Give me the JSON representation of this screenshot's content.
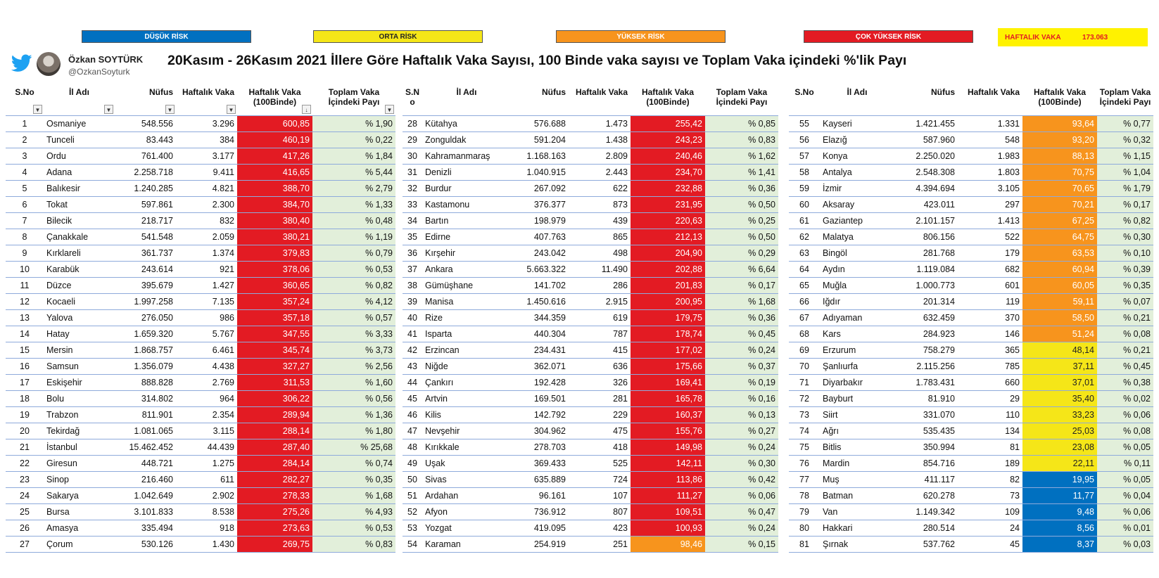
{
  "legend": {
    "low": "DÜŞÜK RİSK",
    "mid": "ORTA RİSK",
    "high": "YÜKSEK RİSK",
    "very_high": "ÇOK YÜKSEK RİSK"
  },
  "weekly_total": {
    "label": "HAFTALIK VAKA",
    "value": "173.063"
  },
  "author": {
    "name": "Özkan SOYTÜRK",
    "handle": "@OzkanSoyturk"
  },
  "title": "20Kasım - 26Kasım 2021  İllere Göre Haftalık Vaka Sayısı, 100 Binde vaka sayısı ve Toplam Vaka içindeki %'lik Payı",
  "colors": {
    "very_high": "#e31b23",
    "high": "#f7941d",
    "mid": "#f5e618",
    "low": "#0070c0",
    "share_bg": "#e2efda"
  },
  "headers": {
    "sno": "S.No",
    "sno_split": "S.N\no",
    "il": "İl Adı",
    "nufus": "Nüfus",
    "haftalik": "Haftalık Vaka",
    "per100k": "Haftalık Vaka\n(100Binde)",
    "share": "Toplam Vaka\nİçindeki Payı"
  },
  "rows": [
    {
      "sn": "1",
      "il": "Osmaniye",
      "nufus": "548.556",
      "vaka": "3.296",
      "per100k": "600,85",
      "share": "% 1,90",
      "risk": "very_high"
    },
    {
      "sn": "2",
      "il": "Tunceli",
      "nufus": "83.443",
      "vaka": "384",
      "per100k": "460,19",
      "share": "% 0,22",
      "risk": "very_high"
    },
    {
      "sn": "3",
      "il": "Ordu",
      "nufus": "761.400",
      "vaka": "3.177",
      "per100k": "417,26",
      "share": "% 1,84",
      "risk": "very_high"
    },
    {
      "sn": "4",
      "il": "Adana",
      "nufus": "2.258.718",
      "vaka": "9.411",
      "per100k": "416,65",
      "share": "% 5,44",
      "risk": "very_high"
    },
    {
      "sn": "5",
      "il": "Balıkesir",
      "nufus": "1.240.285",
      "vaka": "4.821",
      "per100k": "388,70",
      "share": "% 2,79",
      "risk": "very_high"
    },
    {
      "sn": "6",
      "il": "Tokat",
      "nufus": "597.861",
      "vaka": "2.300",
      "per100k": "384,70",
      "share": "% 1,33",
      "risk": "very_high"
    },
    {
      "sn": "7",
      "il": "Bilecik",
      "nufus": "218.717",
      "vaka": "832",
      "per100k": "380,40",
      "share": "% 0,48",
      "risk": "very_high"
    },
    {
      "sn": "8",
      "il": "Çanakkale",
      "nufus": "541.548",
      "vaka": "2.059",
      "per100k": "380,21",
      "share": "% 1,19",
      "risk": "very_high"
    },
    {
      "sn": "9",
      "il": "Kırklareli",
      "nufus": "361.737",
      "vaka": "1.374",
      "per100k": "379,83",
      "share": "% 0,79",
      "risk": "very_high"
    },
    {
      "sn": "10",
      "il": "Karabük",
      "nufus": "243.614",
      "vaka": "921",
      "per100k": "378,06",
      "share": "% 0,53",
      "risk": "very_high"
    },
    {
      "sn": "11",
      "il": "Düzce",
      "nufus": "395.679",
      "vaka": "1.427",
      "per100k": "360,65",
      "share": "% 0,82",
      "risk": "very_high"
    },
    {
      "sn": "12",
      "il": "Kocaeli",
      "nufus": "1.997.258",
      "vaka": "7.135",
      "per100k": "357,24",
      "share": "% 4,12",
      "risk": "very_high"
    },
    {
      "sn": "13",
      "il": "Yalova",
      "nufus": "276.050",
      "vaka": "986",
      "per100k": "357,18",
      "share": "% 0,57",
      "risk": "very_high"
    },
    {
      "sn": "14",
      "il": "Hatay",
      "nufus": "1.659.320",
      "vaka": "5.767",
      "per100k": "347,55",
      "share": "% 3,33",
      "risk": "very_high"
    },
    {
      "sn": "15",
      "il": "Mersin",
      "nufus": "1.868.757",
      "vaka": "6.461",
      "per100k": "345,74",
      "share": "% 3,73",
      "risk": "very_high"
    },
    {
      "sn": "16",
      "il": "Samsun",
      "nufus": "1.356.079",
      "vaka": "4.438",
      "per100k": "327,27",
      "share": "% 2,56",
      "risk": "very_high"
    },
    {
      "sn": "17",
      "il": "Eskişehir",
      "nufus": "888.828",
      "vaka": "2.769",
      "per100k": "311,53",
      "share": "% 1,60",
      "risk": "very_high"
    },
    {
      "sn": "18",
      "il": "Bolu",
      "nufus": "314.802",
      "vaka": "964",
      "per100k": "306,22",
      "share": "% 0,56",
      "risk": "very_high"
    },
    {
      "sn": "19",
      "il": "Trabzon",
      "nufus": "811.901",
      "vaka": "2.354",
      "per100k": "289,94",
      "share": "% 1,36",
      "risk": "very_high"
    },
    {
      "sn": "20",
      "il": "Tekirdağ",
      "nufus": "1.081.065",
      "vaka": "3.115",
      "per100k": "288,14",
      "share": "% 1,80",
      "risk": "very_high"
    },
    {
      "sn": "21",
      "il": "İstanbul",
      "nufus": "15.462.452",
      "vaka": "44.439",
      "per100k": "287,40",
      "share": "% 25,68",
      "risk": "very_high"
    },
    {
      "sn": "22",
      "il": "Giresun",
      "nufus": "448.721",
      "vaka": "1.275",
      "per100k": "284,14",
      "share": "% 0,74",
      "risk": "very_high"
    },
    {
      "sn": "23",
      "il": "Sinop",
      "nufus": "216.460",
      "vaka": "611",
      "per100k": "282,27",
      "share": "% 0,35",
      "risk": "very_high"
    },
    {
      "sn": "24",
      "il": "Sakarya",
      "nufus": "1.042.649",
      "vaka": "2.902",
      "per100k": "278,33",
      "share": "% 1,68",
      "risk": "very_high"
    },
    {
      "sn": "25",
      "il": "Bursa",
      "nufus": "3.101.833",
      "vaka": "8.538",
      "per100k": "275,26",
      "share": "% 4,93",
      "risk": "very_high"
    },
    {
      "sn": "26",
      "il": "Amasya",
      "nufus": "335.494",
      "vaka": "918",
      "per100k": "273,63",
      "share": "% 0,53",
      "risk": "very_high"
    },
    {
      "sn": "27",
      "il": "Çorum",
      "nufus": "530.126",
      "vaka": "1.430",
      "per100k": "269,75",
      "share": "% 0,83",
      "risk": "very_high"
    },
    {
      "sn": "28",
      "il": "Kütahya",
      "nufus": "576.688",
      "vaka": "1.473",
      "per100k": "255,42",
      "share": "% 0,85",
      "risk": "very_high"
    },
    {
      "sn": "29",
      "il": "Zonguldak",
      "nufus": "591.204",
      "vaka": "1.438",
      "per100k": "243,23",
      "share": "% 0,83",
      "risk": "very_high"
    },
    {
      "sn": "30",
      "il": "Kahramanmaraş",
      "nufus": "1.168.163",
      "vaka": "2.809",
      "per100k": "240,46",
      "share": "% 1,62",
      "risk": "very_high"
    },
    {
      "sn": "31",
      "il": "Denizli",
      "nufus": "1.040.915",
      "vaka": "2.443",
      "per100k": "234,70",
      "share": "% 1,41",
      "risk": "very_high"
    },
    {
      "sn": "32",
      "il": "Burdur",
      "nufus": "267.092",
      "vaka": "622",
      "per100k": "232,88",
      "share": "% 0,36",
      "risk": "very_high"
    },
    {
      "sn": "33",
      "il": "Kastamonu",
      "nufus": "376.377",
      "vaka": "873",
      "per100k": "231,95",
      "share": "% 0,50",
      "risk": "very_high"
    },
    {
      "sn": "34",
      "il": "Bartın",
      "nufus": "198.979",
      "vaka": "439",
      "per100k": "220,63",
      "share": "% 0,25",
      "risk": "very_high"
    },
    {
      "sn": "35",
      "il": "Edirne",
      "nufus": "407.763",
      "vaka": "865",
      "per100k": "212,13",
      "share": "% 0,50",
      "risk": "very_high"
    },
    {
      "sn": "36",
      "il": "Kırşehir",
      "nufus": "243.042",
      "vaka": "498",
      "per100k": "204,90",
      "share": "% 0,29",
      "risk": "very_high"
    },
    {
      "sn": "37",
      "il": "Ankara",
      "nufus": "5.663.322",
      "vaka": "11.490",
      "per100k": "202,88",
      "share": "% 6,64",
      "risk": "very_high"
    },
    {
      "sn": "38",
      "il": "Gümüşhane",
      "nufus": "141.702",
      "vaka": "286",
      "per100k": "201,83",
      "share": "% 0,17",
      "risk": "very_high"
    },
    {
      "sn": "39",
      "il": "Manisa",
      "nufus": "1.450.616",
      "vaka": "2.915",
      "per100k": "200,95",
      "share": "% 1,68",
      "risk": "very_high"
    },
    {
      "sn": "40",
      "il": "Rize",
      "nufus": "344.359",
      "vaka": "619",
      "per100k": "179,75",
      "share": "% 0,36",
      "risk": "very_high"
    },
    {
      "sn": "41",
      "il": "Isparta",
      "nufus": "440.304",
      "vaka": "787",
      "per100k": "178,74",
      "share": "% 0,45",
      "risk": "very_high"
    },
    {
      "sn": "42",
      "il": "Erzincan",
      "nufus": "234.431",
      "vaka": "415",
      "per100k": "177,02",
      "share": "% 0,24",
      "risk": "very_high"
    },
    {
      "sn": "43",
      "il": "Niğde",
      "nufus": "362.071",
      "vaka": "636",
      "per100k": "175,66",
      "share": "% 0,37",
      "risk": "very_high"
    },
    {
      "sn": "44",
      "il": "Çankırı",
      "nufus": "192.428",
      "vaka": "326",
      "per100k": "169,41",
      "share": "% 0,19",
      "risk": "very_high"
    },
    {
      "sn": "45",
      "il": "Artvin",
      "nufus": "169.501",
      "vaka": "281",
      "per100k": "165,78",
      "share": "% 0,16",
      "risk": "very_high"
    },
    {
      "sn": "46",
      "il": "Kilis",
      "nufus": "142.792",
      "vaka": "229",
      "per100k": "160,37",
      "share": "% 0,13",
      "risk": "very_high"
    },
    {
      "sn": "47",
      "il": "Nevşehir",
      "nufus": "304.962",
      "vaka": "475",
      "per100k": "155,76",
      "share": "% 0,27",
      "risk": "very_high"
    },
    {
      "sn": "48",
      "il": "Kırıkkale",
      "nufus": "278.703",
      "vaka": "418",
      "per100k": "149,98",
      "share": "% 0,24",
      "risk": "very_high"
    },
    {
      "sn": "49",
      "il": "Uşak",
      "nufus": "369.433",
      "vaka": "525",
      "per100k": "142,11",
      "share": "% 0,30",
      "risk": "very_high"
    },
    {
      "sn": "50",
      "il": "Sivas",
      "nufus": "635.889",
      "vaka": "724",
      "per100k": "113,86",
      "share": "% 0,42",
      "risk": "very_high"
    },
    {
      "sn": "51",
      "il": "Ardahan",
      "nufus": "96.161",
      "vaka": "107",
      "per100k": "111,27",
      "share": "% 0,06",
      "risk": "very_high"
    },
    {
      "sn": "52",
      "il": "Afyon",
      "nufus": "736.912",
      "vaka": "807",
      "per100k": "109,51",
      "share": "% 0,47",
      "risk": "very_high"
    },
    {
      "sn": "53",
      "il": "Yozgat",
      "nufus": "419.095",
      "vaka": "423",
      "per100k": "100,93",
      "share": "% 0,24",
      "risk": "very_high"
    },
    {
      "sn": "54",
      "il": "Karaman",
      "nufus": "254.919",
      "vaka": "251",
      "per100k": "98,46",
      "share": "% 0,15",
      "risk": "high"
    },
    {
      "sn": "55",
      "il": "Kayseri",
      "nufus": "1.421.455",
      "vaka": "1.331",
      "per100k": "93,64",
      "share": "% 0,77",
      "risk": "high"
    },
    {
      "sn": "56",
      "il": "Elazığ",
      "nufus": "587.960",
      "vaka": "548",
      "per100k": "93,20",
      "share": "% 0,32",
      "risk": "high"
    },
    {
      "sn": "57",
      "il": "Konya",
      "nufus": "2.250.020",
      "vaka": "1.983",
      "per100k": "88,13",
      "share": "% 1,15",
      "risk": "high"
    },
    {
      "sn": "58",
      "il": "Antalya",
      "nufus": "2.548.308",
      "vaka": "1.803",
      "per100k": "70,75",
      "share": "% 1,04",
      "risk": "high"
    },
    {
      "sn": "59",
      "il": "İzmir",
      "nufus": "4.394.694",
      "vaka": "3.105",
      "per100k": "70,65",
      "share": "% 1,79",
      "risk": "high"
    },
    {
      "sn": "60",
      "il": "Aksaray",
      "nufus": "423.011",
      "vaka": "297",
      "per100k": "70,21",
      "share": "% 0,17",
      "risk": "high"
    },
    {
      "sn": "61",
      "il": "Gaziantep",
      "nufus": "2.101.157",
      "vaka": "1.413",
      "per100k": "67,25",
      "share": "% 0,82",
      "risk": "high"
    },
    {
      "sn": "62",
      "il": "Malatya",
      "nufus": "806.156",
      "vaka": "522",
      "per100k": "64,75",
      "share": "% 0,30",
      "risk": "high"
    },
    {
      "sn": "63",
      "il": "Bingöl",
      "nufus": "281.768",
      "vaka": "179",
      "per100k": "63,53",
      "share": "% 0,10",
      "risk": "high"
    },
    {
      "sn": "64",
      "il": "Aydın",
      "nufus": "1.119.084",
      "vaka": "682",
      "per100k": "60,94",
      "share": "% 0,39",
      "risk": "high"
    },
    {
      "sn": "65",
      "il": "Muğla",
      "nufus": "1.000.773",
      "vaka": "601",
      "per100k": "60,05",
      "share": "% 0,35",
      "risk": "high"
    },
    {
      "sn": "66",
      "il": "Iğdır",
      "nufus": "201.314",
      "vaka": "119",
      "per100k": "59,11",
      "share": "% 0,07",
      "risk": "high"
    },
    {
      "sn": "67",
      "il": "Adıyaman",
      "nufus": "632.459",
      "vaka": "370",
      "per100k": "58,50",
      "share": "% 0,21",
      "risk": "high"
    },
    {
      "sn": "68",
      "il": "Kars",
      "nufus": "284.923",
      "vaka": "146",
      "per100k": "51,24",
      "share": "% 0,08",
      "risk": "high"
    },
    {
      "sn": "69",
      "il": "Erzurum",
      "nufus": "758.279",
      "vaka": "365",
      "per100k": "48,14",
      "share": "% 0,21",
      "risk": "mid"
    },
    {
      "sn": "70",
      "il": "Şanlıurfa",
      "nufus": "2.115.256",
      "vaka": "785",
      "per100k": "37,11",
      "share": "% 0,45",
      "risk": "mid"
    },
    {
      "sn": "71",
      "il": "Diyarbakır",
      "nufus": "1.783.431",
      "vaka": "660",
      "per100k": "37,01",
      "share": "% 0,38",
      "risk": "mid"
    },
    {
      "sn": "72",
      "il": "Bayburt",
      "nufus": "81.910",
      "vaka": "29",
      "per100k": "35,40",
      "share": "% 0,02",
      "risk": "mid"
    },
    {
      "sn": "73",
      "il": "Siirt",
      "nufus": "331.070",
      "vaka": "110",
      "per100k": "33,23",
      "share": "% 0,06",
      "risk": "mid"
    },
    {
      "sn": "74",
      "il": "Ağrı",
      "nufus": "535.435",
      "vaka": "134",
      "per100k": "25,03",
      "share": "% 0,08",
      "risk": "mid"
    },
    {
      "sn": "75",
      "il": "Bitlis",
      "nufus": "350.994",
      "vaka": "81",
      "per100k": "23,08",
      "share": "% 0,05",
      "risk": "mid"
    },
    {
      "sn": "76",
      "il": "Mardin",
      "nufus": "854.716",
      "vaka": "189",
      "per100k": "22,11",
      "share": "% 0,11",
      "risk": "mid"
    },
    {
      "sn": "77",
      "il": "Muş",
      "nufus": "411.117",
      "vaka": "82",
      "per100k": "19,95",
      "share": "% 0,05",
      "risk": "low"
    },
    {
      "sn": "78",
      "il": "Batman",
      "nufus": "620.278",
      "vaka": "73",
      "per100k": "11,77",
      "share": "% 0,04",
      "risk": "low"
    },
    {
      "sn": "79",
      "il": "Van",
      "nufus": "1.149.342",
      "vaka": "109",
      "per100k": "9,48",
      "share": "% 0,06",
      "risk": "low"
    },
    {
      "sn": "80",
      "il": "Hakkari",
      "nufus": "280.514",
      "vaka": "24",
      "per100k": "8,56",
      "share": "% 0,01",
      "risk": "low"
    },
    {
      "sn": "81",
      "il": "Şırnak",
      "nufus": "537.762",
      "vaka": "45",
      "per100k": "8,37",
      "share": "% 0,03",
      "risk": "low"
    }
  ]
}
